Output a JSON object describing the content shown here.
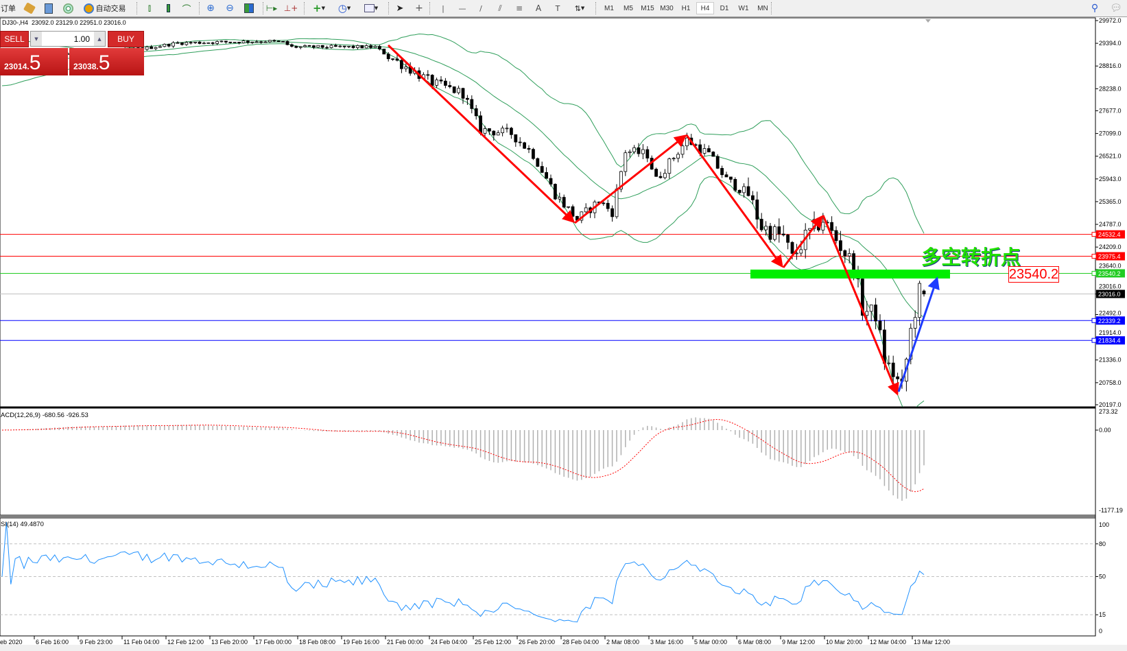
{
  "toolbar": {
    "orders_label": "订单",
    "autotrade_label": "自动交易",
    "timeframes": [
      "M1",
      "M5",
      "M15",
      "M30",
      "H1",
      "H4",
      "D1",
      "W1",
      "MN"
    ],
    "active_timeframe": "H4"
  },
  "chart": {
    "symbol_tf": "DJ30-,H4",
    "ohlc": "23092.0 23129.0 22951.0 23016.0",
    "last_bar": {
      "open": 23092.0,
      "high": 23129.0,
      "low": 22951.0,
      "close": 23016.0
    },
    "price_axis": [
      "29972.0",
      "29394.0",
      "28816.0",
      "28238.0",
      "27677.0",
      "27099.0",
      "26521.0",
      "25943.0",
      "25365.0",
      "24787.0",
      "24209.0",
      "23640.0",
      "23016.0",
      "22492.0",
      "21914.0",
      "21336.0",
      "20758.0",
      "20197.0"
    ],
    "price_range": [
      20197.0,
      29972.0
    ],
    "level_lines": [
      {
        "price": "24532.4",
        "color": "#ff0000"
      },
      {
        "price": "23975.4",
        "color": "#ff0000"
      },
      {
        "price": "23540.2",
        "color": "#22cc22"
      },
      {
        "price": "23016.0",
        "color": "#000000",
        "line": "#c0c0c0"
      },
      {
        "price": "22339.2",
        "color": "#0000ff"
      },
      {
        "price": "21834.4",
        "color": "#0000ff"
      }
    ],
    "price_path": [
      [
        0,
        28900
      ],
      [
        15,
        29100
      ],
      [
        33,
        29274
      ],
      [
        40,
        29400
      ],
      [
        60,
        29450
      ],
      [
        64,
        29420
      ],
      [
        66,
        29300
      ],
      [
        85,
        29300
      ],
      [
        88,
        29064
      ],
      [
        98,
        28392
      ],
      [
        105,
        28120
      ],
      [
        109,
        27196
      ],
      [
        116,
        27100
      ],
      [
        121,
        26567
      ],
      [
        126,
        25555
      ],
      [
        131,
        24910
      ],
      [
        136,
        25380
      ],
      [
        139,
        25100
      ],
      [
        142,
        26655
      ],
      [
        147,
        26567
      ],
      [
        149,
        25920
      ],
      [
        156,
        26934
      ],
      [
        161,
        26567
      ],
      [
        165,
        25920
      ],
      [
        170,
        25555
      ],
      [
        173,
        24734
      ],
      [
        178,
        24455
      ],
      [
        180,
        23913
      ],
      [
        183,
        24455
      ],
      [
        187,
        24910
      ],
      [
        190,
        24400
      ],
      [
        194,
        23722
      ],
      [
        196,
        22622
      ],
      [
        199,
        22500
      ],
      [
        201,
        21347
      ],
      [
        205,
        20614
      ],
      [
        207,
        22080
      ],
      [
        209,
        23093
      ],
      [
        210,
        23016
      ]
    ],
    "bar_count": 211,
    "indicator_colors": {
      "bands": "#2e9e5a",
      "macd_hist": "#b0b0b0",
      "macd_signal": "#ff0000",
      "rsi": "#1e90ff"
    },
    "annotation_text": "多空转折点",
    "annotation_label": "23540.2"
  },
  "trade_panel": {
    "sell_label": "SELL",
    "buy_label": "BUY",
    "lot": "1.00",
    "sell_price_small": "23014.",
    "sell_price_big": "5",
    "buy_price_small": "23038.",
    "buy_price_big": "5"
  },
  "macd": {
    "label": "ACD(12,26,9) -680.56 -926.53",
    "axis": [
      "273.32",
      "0.00",
      "-1177.19"
    ],
    "range": [
      -1177.19,
      273.32
    ]
  },
  "rsi": {
    "label": "SI(14) 49.4870",
    "axis": [
      "100",
      "80",
      "50",
      "15",
      "0"
    ],
    "levels": [
      80,
      50,
      15
    ]
  },
  "time_axis": [
    "eb 2020",
    "6 Feb 16:00",
    "9 Feb 23:00",
    "11 Feb 04:00",
    "12 Feb 12:00",
    "13 Feb 20:00",
    "17 Feb 00:00",
    "18 Feb 08:00",
    "19 Feb 16:00",
    "21 Feb 00:00",
    "24 Feb 04:00",
    "25 Feb 12:00",
    "26 Feb 20:00",
    "28 Feb 04:00",
    "2 Mar 08:00",
    "3 Mar 16:00",
    "5 Mar 00:00",
    "6 Mar 08:00",
    "9 Mar 12:00",
    "10 Mar 20:00",
    "12 Mar 04:00",
    "13 Mar 12:00"
  ]
}
